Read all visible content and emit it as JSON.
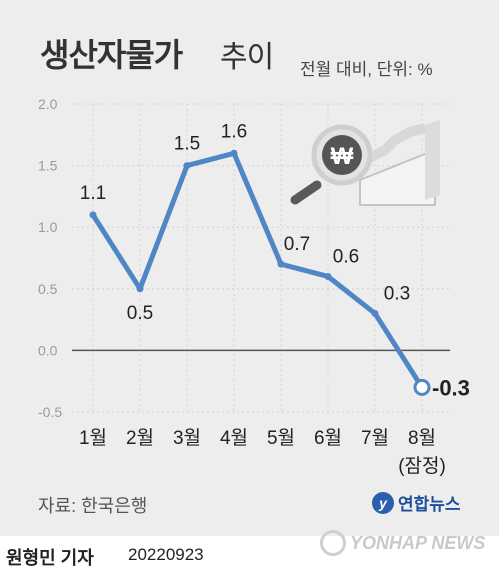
{
  "title": "생산자물가",
  "title_suffix": "추이",
  "unit_note": "전월 대비, 단위: %",
  "source": "자료: 한국은행",
  "agency": "연합뉴스",
  "reporter": "원형민 기자",
  "date": "20220923",
  "watermark": "YONHAP NEWS",
  "colors": {
    "line": "#4f86c6",
    "background": "#ededed",
    "axis": "#555555"
  },
  "icon": "magnifier-won-chart-icon",
  "chart_data": {
    "type": "line",
    "categories": [
      "1월",
      "2월",
      "3월",
      "4월",
      "5월",
      "6월",
      "7월",
      "8월"
    ],
    "category_note": "(잠정)",
    "values": [
      1.1,
      0.5,
      1.5,
      1.6,
      0.7,
      0.6,
      0.3,
      -0.3
    ],
    "data_labels": [
      "1.1",
      "0.5",
      "1.5",
      "1.6",
      "0.7",
      "0.6",
      "0.3",
      "-0.3"
    ],
    "yticks": [
      "2.0",
      "1.5",
      "1.0",
      "0.5",
      "0.0",
      "-0.5"
    ],
    "ylim": [
      -0.5,
      2.0
    ],
    "grid": true
  }
}
